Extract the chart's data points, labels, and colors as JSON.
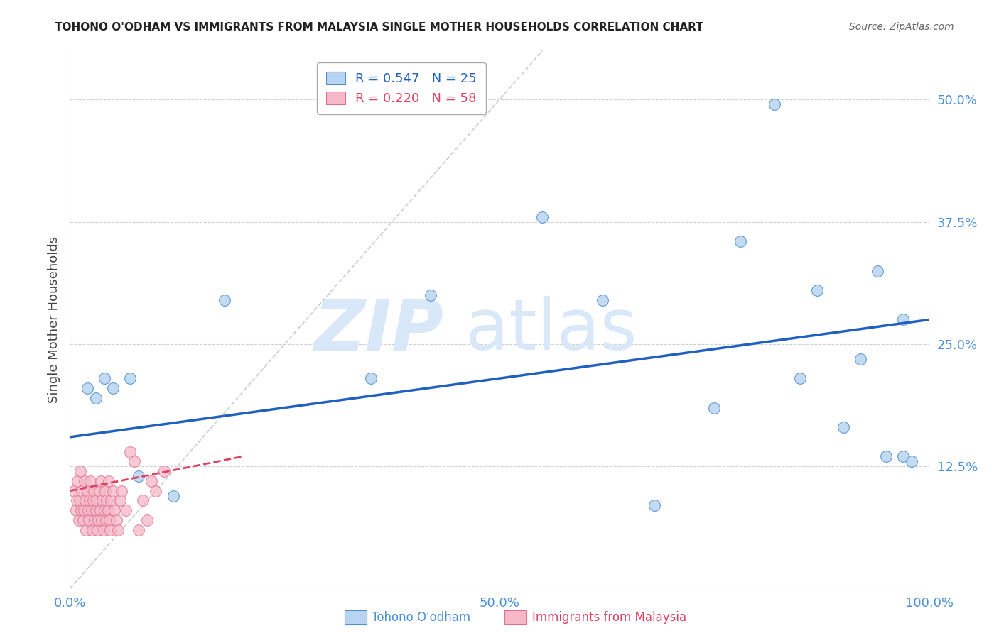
{
  "title": "TOHONO O'ODHAM VS IMMIGRANTS FROM MALAYSIA SINGLE MOTHER HOUSEHOLDS CORRELATION CHART",
  "source": "Source: ZipAtlas.com",
  "axis_color": "#4a90d9",
  "ylabel": "Single Mother Households",
  "xlim": [
    0.0,
    1.0
  ],
  "ylim": [
    0.0,
    0.55
  ],
  "yticks": [
    0.125,
    0.25,
    0.375,
    0.5
  ],
  "ytick_labels": [
    "12.5%",
    "25.0%",
    "37.5%",
    "50.0%"
  ],
  "xticks": [
    0.0,
    0.5,
    1.0
  ],
  "xtick_labels": [
    "0.0%",
    "50.0%",
    "100.0%"
  ],
  "blue_R": 0.547,
  "blue_N": 25,
  "pink_R": 0.22,
  "pink_N": 58,
  "blue_color": "#b8d4f0",
  "blue_edge_color": "#5090d0",
  "blue_line_color": "#2060c0",
  "pink_color": "#f5b8c8",
  "pink_edge_color": "#e07090",
  "pink_line_color": "#e04060",
  "blue_scatter_x": [
    0.02,
    0.03,
    0.04,
    0.05,
    0.07,
    0.08,
    0.12,
    0.18,
    0.35,
    0.42,
    0.55,
    0.62,
    0.68,
    0.75,
    0.78,
    0.82,
    0.85,
    0.87,
    0.9,
    0.92,
    0.94,
    0.95,
    0.97,
    0.97,
    0.98
  ],
  "blue_scatter_y": [
    0.205,
    0.195,
    0.215,
    0.205,
    0.215,
    0.115,
    0.095,
    0.295,
    0.215,
    0.3,
    0.38,
    0.295,
    0.085,
    0.185,
    0.355,
    0.495,
    0.215,
    0.305,
    0.165,
    0.235,
    0.325,
    0.135,
    0.135,
    0.275,
    0.13
  ],
  "pink_scatter_x": [
    0.005,
    0.007,
    0.008,
    0.009,
    0.01,
    0.011,
    0.012,
    0.013,
    0.014,
    0.015,
    0.016,
    0.017,
    0.018,
    0.019,
    0.02,
    0.021,
    0.022,
    0.023,
    0.024,
    0.025,
    0.026,
    0.027,
    0.028,
    0.029,
    0.03,
    0.031,
    0.032,
    0.033,
    0.034,
    0.035,
    0.036,
    0.037,
    0.038,
    0.039,
    0.04,
    0.041,
    0.042,
    0.043,
    0.044,
    0.045,
    0.046,
    0.047,
    0.048,
    0.05,
    0.052,
    0.054,
    0.056,
    0.058,
    0.06,
    0.065,
    0.07,
    0.075,
    0.08,
    0.085,
    0.09,
    0.095,
    0.1,
    0.11
  ],
  "pink_scatter_y": [
    0.1,
    0.08,
    0.09,
    0.11,
    0.07,
    0.09,
    0.12,
    0.08,
    0.1,
    0.07,
    0.08,
    0.11,
    0.09,
    0.06,
    0.1,
    0.08,
    0.07,
    0.09,
    0.11,
    0.08,
    0.06,
    0.09,
    0.1,
    0.07,
    0.08,
    0.09,
    0.06,
    0.07,
    0.1,
    0.08,
    0.11,
    0.07,
    0.09,
    0.06,
    0.08,
    0.1,
    0.07,
    0.09,
    0.08,
    0.11,
    0.07,
    0.06,
    0.09,
    0.1,
    0.08,
    0.07,
    0.06,
    0.09,
    0.1,
    0.08,
    0.14,
    0.13,
    0.06,
    0.09,
    0.07,
    0.11,
    0.1,
    0.12
  ],
  "marker_size": 130,
  "background_color": "#ffffff",
  "grid_color": "#d0d0d0",
  "watermark_zip": "ZIP",
  "watermark_atlas": "atlas",
  "watermark_color": "#d8e8f8",
  "blue_line_x0": 0.0,
  "blue_line_x1": 1.0,
  "blue_line_y0": 0.155,
  "blue_line_y1": 0.275,
  "pink_line_x0": 0.0,
  "pink_line_x1": 0.2,
  "pink_line_y0": 0.1,
  "pink_line_y1": 0.135,
  "diag_line_x0": 0.0,
  "diag_line_x1": 0.55,
  "diag_line_y0": 0.0,
  "diag_line_y1": 0.55
}
